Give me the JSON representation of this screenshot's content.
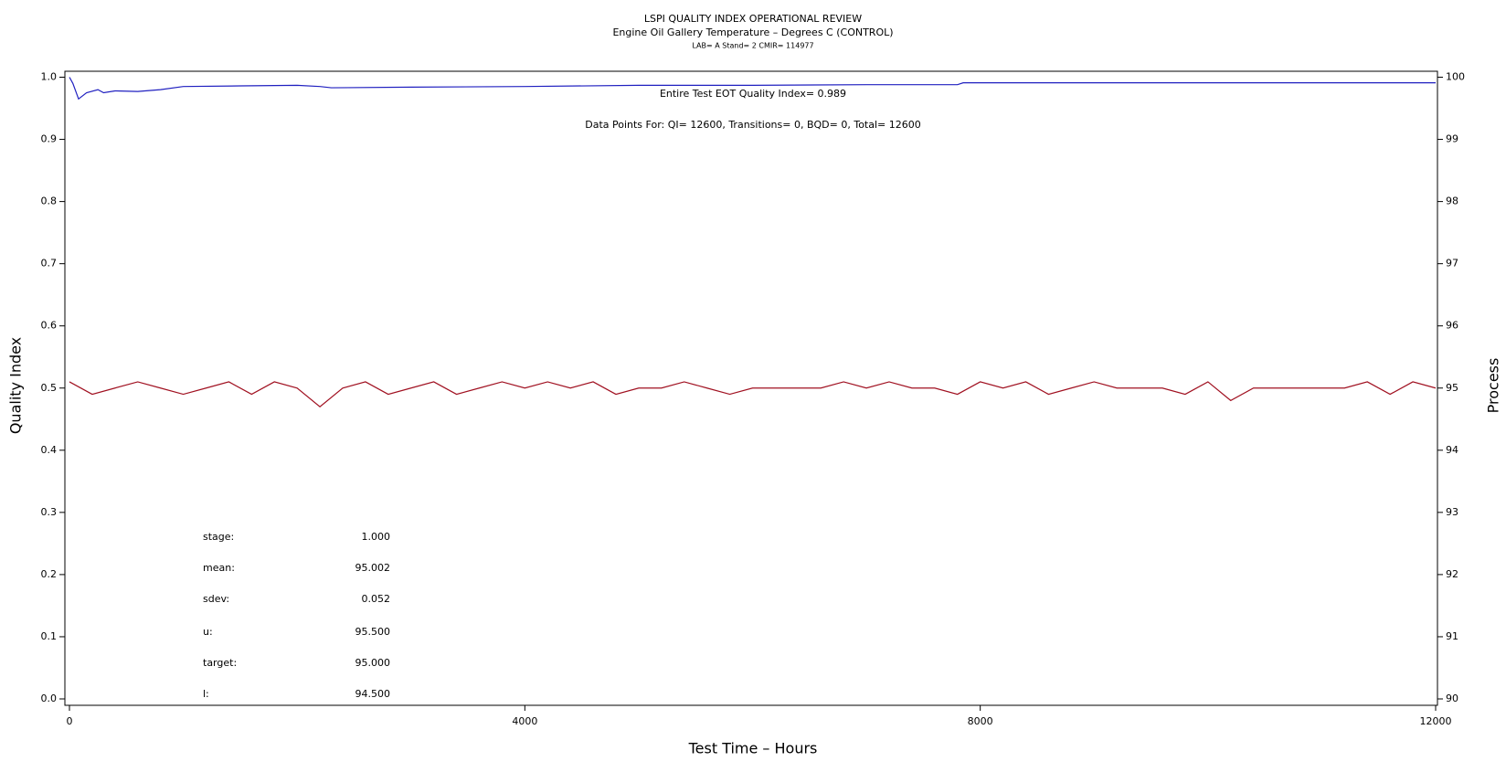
{
  "chart_data": {
    "type": "line",
    "title": "LSPI QUALITY INDEX OPERATIONAL REVIEW",
    "subtitle": "Engine Oil Gallery Temperature – Degrees C (CONTROL)",
    "note": "LAB= A Stand= 2 CMIR= 114977",
    "annotations": [
      "Entire Test EOT Quality Index=   0.989",
      "Data Points For: QI= 12600, Transitions=      0, BQD=      0, Total= 12600"
    ],
    "stats": [
      {
        "label": "stage:",
        "value": "1.000"
      },
      {
        "label": "mean:",
        "value": "95.002"
      },
      {
        "label": "sdev:",
        "value": "0.052"
      },
      {
        "label": "u:",
        "value": "95.500"
      },
      {
        "label": "target:",
        "value": "95.000"
      },
      {
        "label": "l:",
        "value": "94.500"
      }
    ],
    "xlabel": "Test Time – Hours",
    "ylabel": "Quality Index",
    "y2label": "Process",
    "xlim": [
      0,
      12000
    ],
    "xticks": [
      0,
      4000,
      8000,
      12000
    ],
    "ylim": [
      0,
      1
    ],
    "yticks": [
      {
        "value": 0,
        "label": "0.0"
      },
      0.1,
      0.2,
      0.3,
      0.4,
      0.5,
      0.6,
      0.7,
      0.8,
      0.9,
      {
        "value": 1,
        "label": "1.0"
      }
    ],
    "y2lim": [
      90,
      100
    ],
    "y2ticks": [
      90,
      91,
      92,
      93,
      94,
      95,
      96,
      97,
      98,
      99,
      100
    ],
    "series": [
      {
        "name": "Quality Index",
        "color": "#2020c0",
        "x": [
          0,
          30,
          80,
          150,
          250,
          300,
          400,
          600,
          800,
          1000,
          1500,
          2000,
          2200,
          2300,
          3000,
          4000,
          5000,
          6000,
          7000,
          7800,
          7850,
          12000
        ],
        "values": [
          1.0,
          0.99,
          0.965,
          0.975,
          0.98,
          0.975,
          0.978,
          0.977,
          0.98,
          0.985,
          0.986,
          0.987,
          0.985,
          0.983,
          0.984,
          0.985,
          0.987,
          0.987,
          0.988,
          0.988,
          0.991,
          0.991
        ]
      },
      {
        "name": "Process",
        "color": "#a01020",
        "axis": "y2",
        "x": [
          0,
          200,
          400,
          600,
          800,
          1000,
          1200,
          1400,
          1600,
          1800,
          2000,
          2200,
          2400,
          2600,
          2800,
          3000,
          3200,
          3400,
          3600,
          3800,
          4000,
          4200,
          4400,
          4600,
          4800,
          5000,
          5200,
          5400,
          5600,
          5800,
          6000,
          6200,
          6400,
          6600,
          6800,
          7000,
          7200,
          7400,
          7600,
          7800,
          8000,
          8200,
          8400,
          8600,
          8800,
          9000,
          9200,
          9400,
          9600,
          9800,
          10000,
          10200,
          10400,
          10600,
          10800,
          11000,
          11200,
          11400,
          11600,
          11800,
          12000
        ],
        "values": [
          95.1,
          94.9,
          95.0,
          95.1,
          95.0,
          94.9,
          95.0,
          95.1,
          94.9,
          95.1,
          95.0,
          94.7,
          95.0,
          95.1,
          94.9,
          95.0,
          95.1,
          94.9,
          95.0,
          95.1,
          95.0,
          95.1,
          95.0,
          95.1,
          94.9,
          95.0,
          95.0,
          95.1,
          95.0,
          94.9,
          95.0,
          95.0,
          95.0,
          95.0,
          95.1,
          95.0,
          95.1,
          95.0,
          95.0,
          94.9,
          95.1,
          95.0,
          95.1,
          94.9,
          95.0,
          95.1,
          95.0,
          95.0,
          95.0,
          94.9,
          95.1,
          94.8,
          95.0,
          95.0,
          95.0,
          95.0,
          95.0,
          95.1,
          94.9,
          95.1,
          95.0
        ]
      }
    ]
  }
}
